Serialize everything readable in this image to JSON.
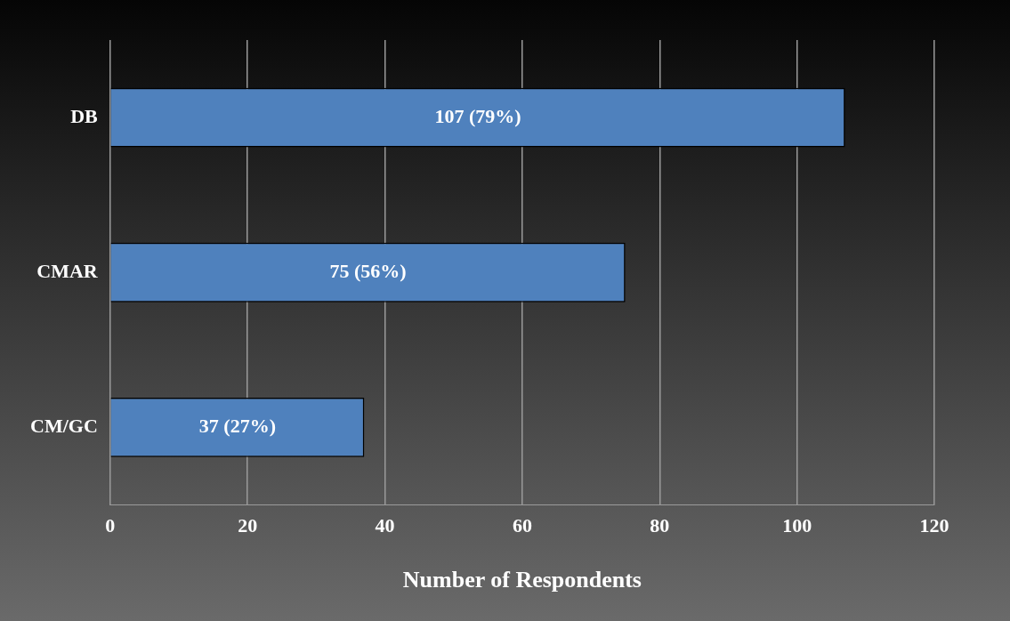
{
  "chart_data": {
    "type": "bar",
    "orientation": "horizontal",
    "xlabel": "Number of Respondents",
    "categories": [
      "DB",
      "CMAR",
      "CM/GC"
    ],
    "values": [
      107,
      75,
      37
    ],
    "value_labels": [
      "107 (79%)",
      "75 (56%)",
      "37 (27%)"
    ],
    "color": "#4f81bd",
    "xlim": [
      0,
      120
    ],
    "xticks": [
      0,
      20,
      40,
      60,
      80,
      100,
      120
    ],
    "grid": "x",
    "legend": false
  }
}
